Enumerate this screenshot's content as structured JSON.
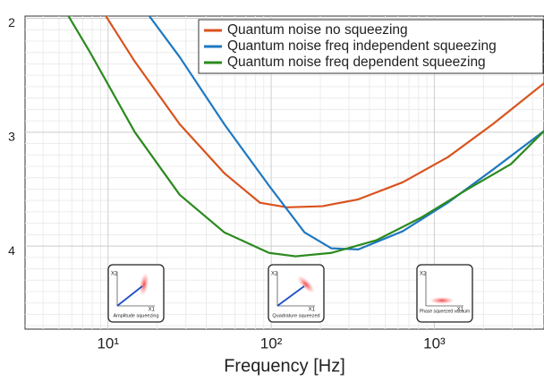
{
  "chart_data": {
    "type": "line",
    "x_label": "Frequency [Hz]",
    "x_log": true,
    "y_inverted": true,
    "xlim": [
      3.1,
      4700
    ],
    "ylim": [
      1.98,
      4.73
    ],
    "xticks": [
      {
        "value": 10,
        "label": "10¹"
      },
      {
        "value": 100,
        "label": "10²"
      },
      {
        "value": 1000,
        "label": "10³"
      }
    ],
    "yticks": [
      2,
      3,
      4
    ],
    "grid": true,
    "minor_grid": true,
    "legend": "upper right",
    "series": [
      {
        "name": "Quantum noise no squeezing",
        "color": "#d9531e",
        "x": [
          9.6,
          14.6,
          27.5,
          51.6,
          85.4,
          125,
          206,
          342,
          640,
          1208,
          2280,
          4700
        ],
        "values": [
          1.97,
          2.38,
          2.93,
          3.36,
          3.62,
          3.66,
          3.65,
          3.59,
          3.44,
          3.22,
          2.93,
          2.57
        ]
      },
      {
        "name": "Quantum noise freq independent squeezing",
        "color": "#1f78c1",
        "x": [
          17.7,
          27.5,
          51.6,
          97,
          160,
          234,
          342,
          640,
          1208,
          2280,
          4700
        ],
        "values": [
          1.97,
          2.34,
          2.93,
          3.47,
          3.88,
          4.02,
          4.03,
          3.87,
          3.62,
          3.33,
          2.99
        ]
      },
      {
        "name": "Quantum noise freq dependent squeezing",
        "color": "#2b8a1e",
        "x": [
          5.67,
          7.77,
          14.6,
          27.5,
          51.6,
          97,
          141,
          234,
          440,
          830,
          1560,
          2950,
          4700
        ],
        "values": [
          1.97,
          2.3,
          3.0,
          3.55,
          3.88,
          4.06,
          4.09,
          4.06,
          3.95,
          3.75,
          3.51,
          3.28,
          2.99
        ]
      }
    ],
    "insets": [
      {
        "label": "Amplitude squeezing",
        "x_axis": "X1",
        "y_axis": "X2"
      },
      {
        "label": "Quadrature squeezed",
        "x_axis": "X1",
        "y_axis": "X2"
      },
      {
        "label": "Phase squeezed vacuum",
        "x_axis": "X1",
        "y_axis": "X2"
      }
    ]
  }
}
